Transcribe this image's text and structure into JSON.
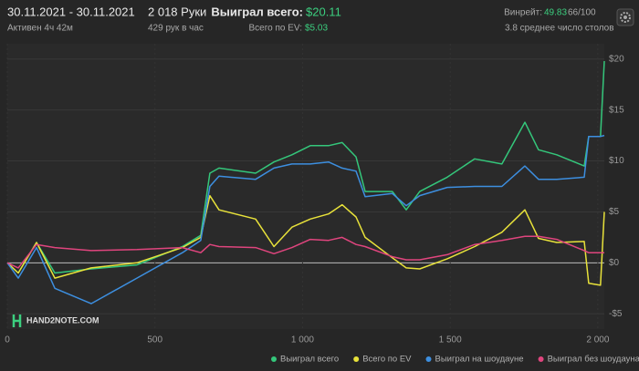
{
  "header": {
    "date_range": "30.11.2021 - 30.11.2021",
    "active": "Активен 4ч 42м",
    "hands": "2 018 Руки",
    "hands_per_hour": "429 рук в час",
    "won_total_label": "Выиграл всего:",
    "won_total_value": "$20.11",
    "ev_label": "Всего по EV:",
    "ev_value": "$5.03",
    "winrate_label": "Винрейт:",
    "winrate_value": "49.83",
    "winrate_hands": "66/100",
    "tables": "3.8 среднее число столов"
  },
  "chart_data": {
    "type": "line",
    "watermark": "HAND2NOTE.COM",
    "x": [
      0,
      37,
      99,
      161,
      284,
      439,
      593,
      655,
      686,
      717,
      841,
      903,
      964,
      1026,
      1088,
      1134,
      1181,
      1212,
      1304,
      1351,
      1397,
      1490,
      1583,
      1675,
      1753,
      1799,
      1861,
      1954,
      1969,
      2009,
      2022
    ],
    "series": [
      {
        "name": "Выиграл всего",
        "color": "#34c77b",
        "values": [
          0,
          -1,
          2,
          -1,
          -0.6,
          -0.2,
          1.6,
          2.7,
          8.8,
          9.3,
          8.8,
          9.9,
          10.6,
          11.5,
          11.5,
          11.8,
          10.4,
          7,
          7,
          5.2,
          7,
          8.4,
          10.2,
          9.7,
          13.8,
          11.1,
          10.6,
          9.5,
          12.4,
          12.4,
          19.8
        ]
      },
      {
        "name": "Всего по EV",
        "color": "#e8e23a",
        "values": [
          0,
          -1,
          2,
          -1.5,
          -0.5,
          0,
          1.5,
          2.5,
          6.6,
          5.2,
          4.3,
          1.6,
          3.5,
          4.3,
          4.8,
          5.7,
          4.5,
          2.5,
          0.5,
          -0.5,
          -0.6,
          0.4,
          1.6,
          3,
          5.2,
          2.4,
          2,
          2.1,
          -2,
          -2.2,
          5
        ]
      },
      {
        "name": "Выиграл на шоудауне",
        "color": "#3d8fe0",
        "values": [
          0,
          -1.5,
          1.5,
          -2.5,
          -4,
          -1.5,
          1,
          2.2,
          7.5,
          8.5,
          8.2,
          9.3,
          9.7,
          9.7,
          9.9,
          9.3,
          9,
          6.5,
          6.8,
          5.6,
          6.6,
          7.4,
          7.5,
          7.5,
          9.5,
          8.2,
          8.2,
          8.4,
          12.4,
          12.4,
          12.5
        ]
      },
      {
        "name": "Выиграл без шоудауна",
        "color": "#e0457e",
        "values": [
          0,
          -0.5,
          1.8,
          1.5,
          1.2,
          1.3,
          1.5,
          1,
          1.8,
          1.6,
          1.5,
          0.9,
          1.5,
          2.3,
          2.2,
          2.5,
          1.8,
          1.6,
          0.6,
          0.3,
          0.3,
          0.8,
          1.8,
          2.2,
          2.6,
          2.6,
          2.3,
          1.2,
          1,
          1,
          1
        ]
      }
    ],
    "xlim": [
      0,
      2022
    ],
    "xticks": [
      0,
      500,
      {
        "value": 1000,
        "label": "1 000"
      },
      {
        "value": 1500,
        "label": "1 500"
      },
      {
        "value": 2000,
        "label": "2 000"
      }
    ],
    "ylim": [
      -6.5,
      21.5
    ],
    "yticks": [
      {
        "value": -5,
        "label": "-$5"
      },
      {
        "value": 0,
        "label": "$0"
      },
      {
        "value": 5,
        "label": "$5"
      },
      {
        "value": 10,
        "label": "$10"
      },
      {
        "value": 15,
        "label": "$15"
      },
      {
        "value": 20,
        "label": "$20"
      }
    ],
    "grid": true
  }
}
